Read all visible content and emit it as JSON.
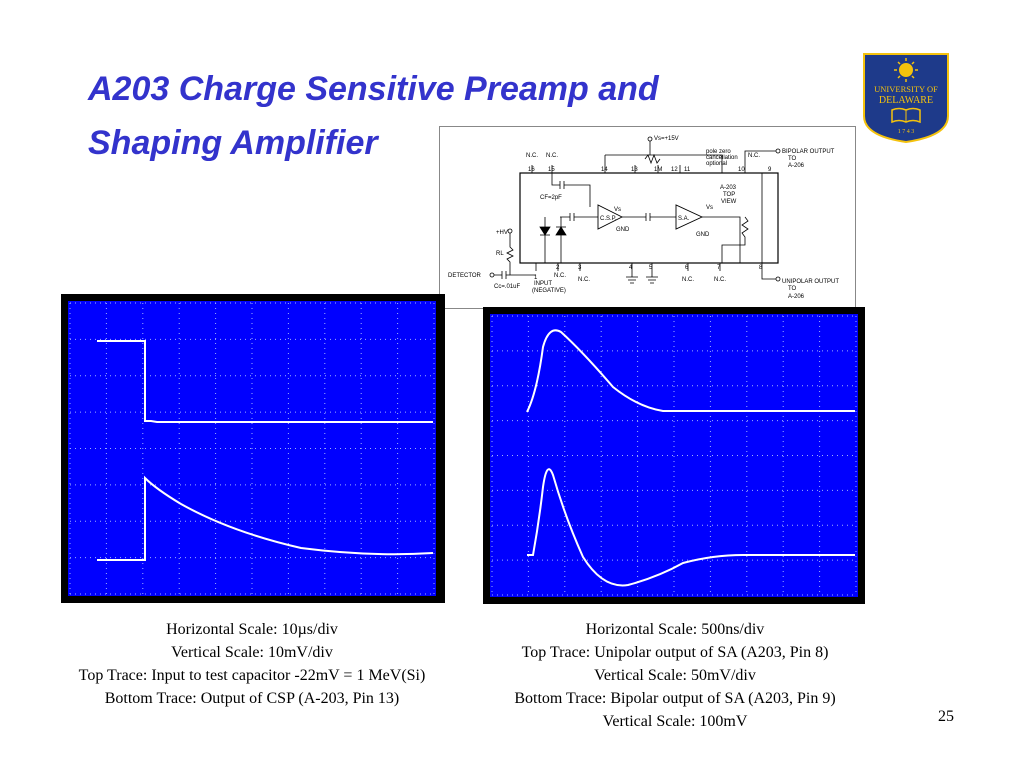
{
  "slide": {
    "title_line1": "A203 Charge Sensitive Preamp and",
    "title_line2": "Shaping Amplifier",
    "page_number": "25"
  },
  "logo": {
    "line1": "UNIVERSITY OF",
    "line2": "DELAWARE",
    "year": "1 7 4 3",
    "colors": {
      "blue": "#1e3a8a",
      "gold": "#f4c20d"
    }
  },
  "schematic": {
    "vs_label": "Vs=+15V",
    "bipolar_output": "BIPOLAR OUTPUT",
    "to1": "TO",
    "dest1": "A-206",
    "unipolar_output": "UNIPOLAR OUTPUT",
    "to2": "TO",
    "dest2": "A-206",
    "pole_zero": "pole zero",
    "cancellation": "cancellation",
    "optional": "optional",
    "chip": "A-203",
    "top": "TOP",
    "view": "VIEW",
    "cf": "CF=2pF",
    "csp": "C.S.P.",
    "sa": "S.A.",
    "vs_a": "Vs",
    "vs_b": "Vs",
    "gnd_a": "GND",
    "gnd_b": "GND",
    "hv": "+HV",
    "rl": "RL",
    "detector": "DETECTOR",
    "cc": "Cc=.01uF",
    "input": "INPUT",
    "negative": "(NEGATIVE)",
    "one_m": "1M",
    "top_pins": [
      "16",
      "15",
      "14",
      "13",
      "12",
      "11",
      "10",
      "9"
    ],
    "top_nc": [
      "N.C.",
      "N.C.",
      "N.C."
    ],
    "bottom_pins": [
      "1",
      "2",
      "3",
      "4",
      "5",
      "6",
      "7",
      "8"
    ],
    "bottom_nc": [
      "N.C.",
      "N.C.",
      "N.C.",
      "N.C."
    ]
  },
  "scopes": {
    "trace_color": "#ffffff",
    "screen_color": "#0000ff",
    "left_caption": {
      "line1": "Horizontal Scale: 10µs/div",
      "line2": "Vertical Scale: 10mV/div",
      "line3": "Top Trace: Input to test capacitor -22mV = 1 MeV(Si)",
      "line4": "Bottom Trace: Output of CSP (A-203, Pin 13)"
    },
    "right_caption": {
      "line1": "Horizontal Scale: 500ns/div",
      "line2": "Top Trace: Unipolar output of SA (A203, Pin 8)",
      "line3": "Vertical Scale: 50mV/div",
      "line4": "Bottom Trace: Bipolar output of SA (A203, Pin 9)",
      "line5": "Vertical Scale: 100mV"
    }
  }
}
